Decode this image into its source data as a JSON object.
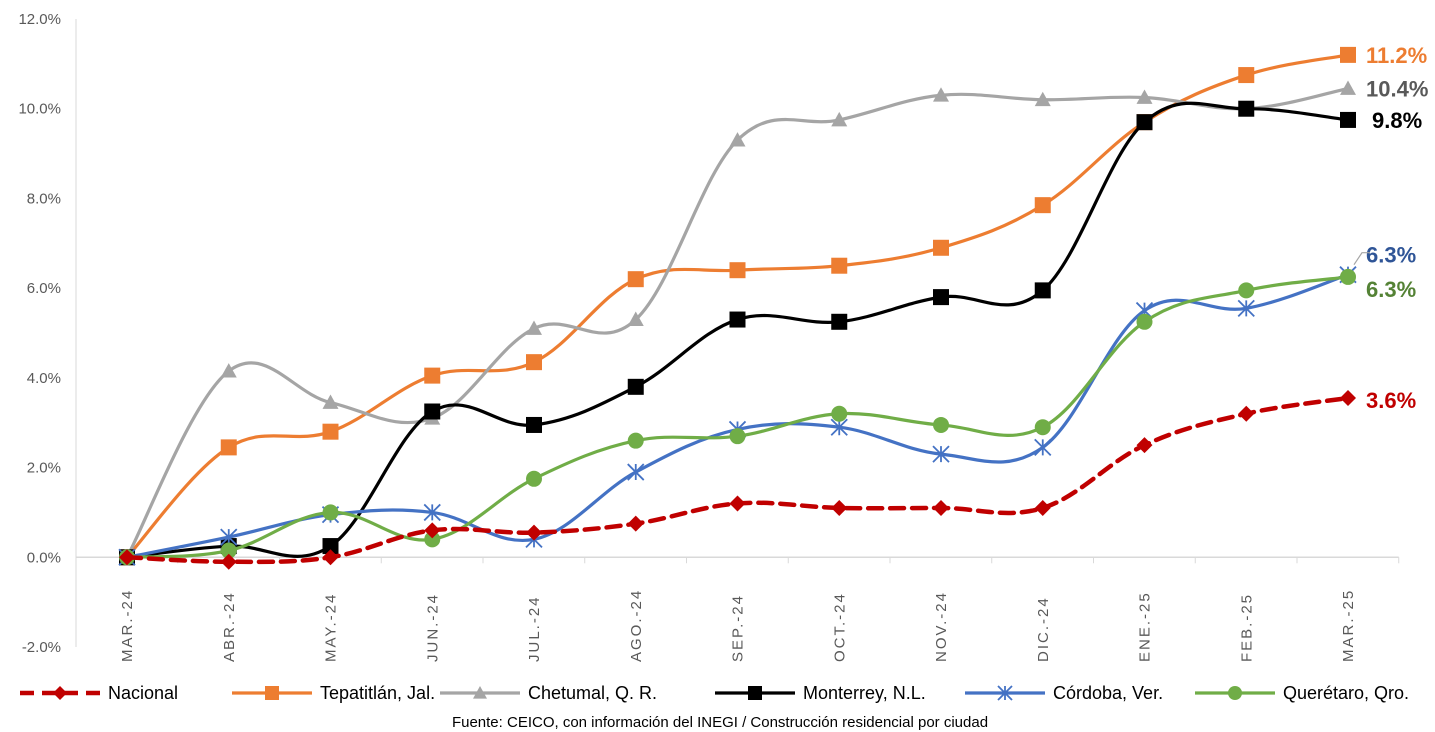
{
  "chart_data": {
    "type": "line",
    "title": "",
    "xlabel": "",
    "ylabel": "",
    "ylim": [
      -2.0,
      12.0
    ],
    "yticks": [
      "12.0%",
      "10.0%",
      "8.0%",
      "6.0%",
      "4.0%",
      "2.0%",
      "0.0%",
      "-2.0%"
    ],
    "ytick_values": [
      12,
      10,
      8,
      6,
      4,
      2,
      0,
      -2
    ],
    "grid": false,
    "legend_position": "bottom",
    "categories": [
      "MAR.-24",
      "ABR.-24",
      "MAY.-24",
      "JUN.-24",
      "JUL.-24",
      "AGO.-24",
      "SEP.-24",
      "OCT.-24",
      "NOV.-24",
      "DIC.-24",
      "ENE.-25",
      "FEB.-25",
      "MAR.-25"
    ],
    "series": [
      {
        "name": "Nacional",
        "color": "#c00000",
        "marker": "diamond",
        "dashed": true,
        "values": [
          0.0,
          -0.1,
          0.0,
          0.6,
          0.55,
          0.75,
          1.2,
          1.1,
          1.1,
          1.1,
          2.5,
          3.2,
          3.55
        ],
        "end_label": "3.6%"
      },
      {
        "name": "Tepatitlán, Jal.",
        "color": "#ed7d31",
        "marker": "square",
        "dashed": false,
        "values": [
          0.0,
          2.45,
          2.8,
          4.05,
          4.35,
          6.2,
          6.4,
          6.5,
          6.9,
          7.85,
          9.7,
          10.75,
          11.2
        ],
        "end_label": "11.2%"
      },
      {
        "name": "Chetumal, Q. R.",
        "color": "#a5a5a5",
        "marker": "triangle",
        "dashed": false,
        "values": [
          0.0,
          4.15,
          3.45,
          3.1,
          5.1,
          5.3,
          9.3,
          9.75,
          10.3,
          10.2,
          10.25,
          10.0,
          10.45
        ],
        "end_label": "10.4%"
      },
      {
        "name": "Monterrey, N.L.",
        "color": "#000000",
        "marker": "square",
        "dashed": false,
        "values": [
          0.0,
          0.25,
          0.25,
          3.25,
          2.95,
          3.8,
          5.3,
          5.25,
          5.8,
          5.95,
          9.7,
          10.0,
          9.75
        ],
        "end_label": "9.8%"
      },
      {
        "name": "Córdoba, Ver.",
        "color": "#4472c4",
        "marker": "star",
        "dashed": false,
        "values": [
          0.0,
          0.45,
          0.95,
          1.0,
          0.4,
          1.9,
          2.85,
          2.9,
          2.3,
          2.45,
          5.5,
          5.55,
          6.3
        ],
        "end_label": "6.3%"
      },
      {
        "name": "Querétaro, Qro.",
        "color": "#70ad47",
        "marker": "circle",
        "dashed": false,
        "values": [
          0.0,
          0.15,
          1.0,
          0.4,
          1.75,
          2.6,
          2.7,
          3.2,
          2.95,
          2.9,
          5.25,
          5.95,
          6.25
        ],
        "end_label": "6.3%"
      }
    ]
  },
  "source_note": "Fuente: CEICO, con información del INEGI / Construcción residencial por ciudad"
}
